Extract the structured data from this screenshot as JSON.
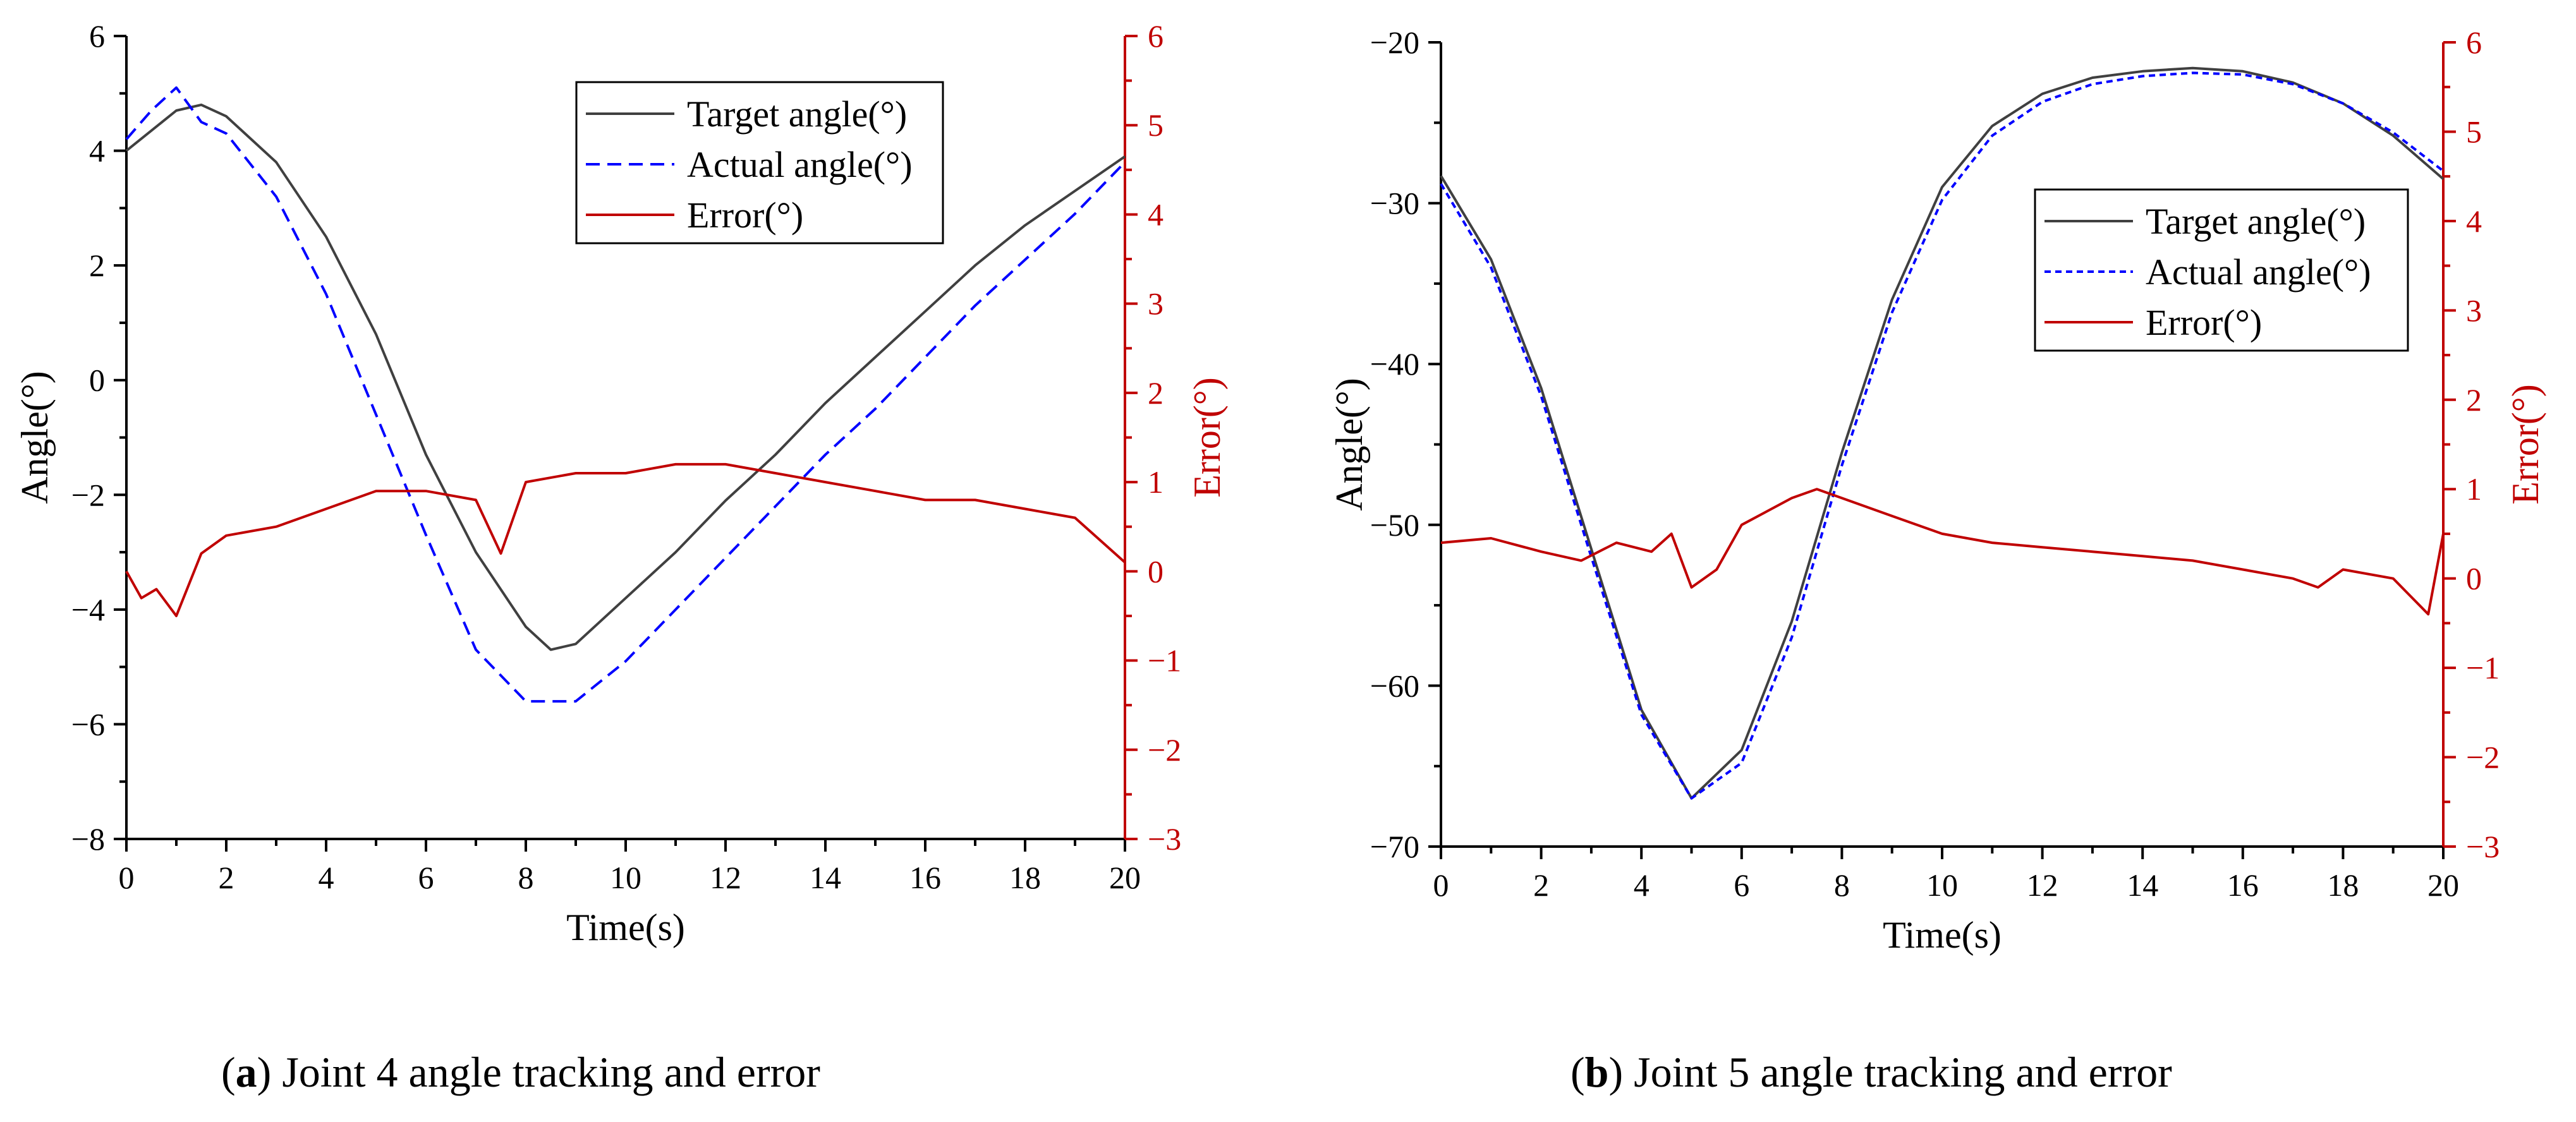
{
  "chart_data": [
    {
      "type": "line",
      "panel": "a",
      "caption_letter": "a",
      "caption_text": " Joint 4 angle tracking and error",
      "xlabel": "Time(s)",
      "ylabel": "Angle(°)",
      "y2label": "Error(°)",
      "xlim": [
        0,
        20
      ],
      "ylim": [
        -8,
        6
      ],
      "y2lim": [
        -3,
        6
      ],
      "xticks": [
        "0",
        "2",
        "4",
        "6",
        "8",
        "10",
        "12",
        "14",
        "16",
        "18",
        "20"
      ],
      "yticks": [
        "−8",
        "−6",
        "−4",
        "−2",
        "0",
        "2",
        "4",
        "6"
      ],
      "y2ticks": [
        "−3",
        "−2",
        "−1",
        "0",
        "1",
        "2",
        "3",
        "4",
        "5",
        "6"
      ],
      "legend_position": "top-right",
      "series": [
        {
          "name": "Target angle(°)",
          "axis": "left",
          "color": "#404040",
          "style": "solid",
          "x": [
            0,
            1,
            1.5,
            2,
            3,
            4,
            5,
            6,
            7,
            8,
            8.5,
            9,
            10,
            11,
            12,
            13,
            14,
            15,
            16,
            17,
            18,
            19,
            20
          ],
          "values": [
            4.0,
            4.7,
            4.8,
            4.6,
            3.8,
            2.5,
            0.8,
            -1.3,
            -3.0,
            -4.3,
            -4.7,
            -4.6,
            -3.8,
            -3.0,
            -2.1,
            -1.3,
            -0.4,
            0.4,
            1.2,
            2.0,
            2.7,
            3.3,
            3.9
          ]
        },
        {
          "name": "Actual angle(°)",
          "axis": "left",
          "color": "#0000ff",
          "style": "dashed",
          "x": [
            0,
            0.5,
            1,
            1.5,
            2,
            3,
            4,
            5,
            6,
            7,
            8,
            9,
            10,
            11,
            12,
            13,
            14,
            15,
            16,
            17,
            18,
            19,
            20
          ],
          "values": [
            4.2,
            4.7,
            5.1,
            4.5,
            4.3,
            3.2,
            1.5,
            -0.6,
            -2.7,
            -4.7,
            -5.6,
            -5.6,
            -4.9,
            -4.0,
            -3.1,
            -2.2,
            -1.3,
            -0.5,
            0.4,
            1.3,
            2.1,
            2.9,
            3.8
          ]
        },
        {
          "name": "Error(°)",
          "axis": "right",
          "color": "#c00000",
          "style": "solid",
          "x": [
            0,
            0.3,
            0.6,
            1,
            1.5,
            2,
            3,
            4,
            5,
            6,
            7,
            7.5,
            8,
            9,
            10,
            11,
            12,
            13,
            14,
            15,
            16,
            17,
            18,
            19,
            20
          ],
          "values": [
            0.0,
            -0.3,
            -0.2,
            -0.5,
            0.2,
            0.4,
            0.5,
            0.7,
            0.9,
            0.9,
            0.8,
            0.2,
            1.0,
            1.1,
            1.1,
            1.2,
            1.2,
            1.1,
            1.0,
            0.9,
            0.8,
            0.8,
            0.7,
            0.6,
            0.1
          ]
        }
      ]
    },
    {
      "type": "line",
      "panel": "b",
      "caption_letter": "b",
      "caption_text": " Joint 5 angle tracking and error",
      "xlabel": "Time(s)",
      "ylabel": "Angle(°)",
      "y2label": "Error(°)",
      "xlim": [
        0,
        20
      ],
      "ylim": [
        -70,
        -20
      ],
      "y2lim": [
        -3,
        6
      ],
      "xticks": [
        "0",
        "2",
        "4",
        "6",
        "8",
        "10",
        "12",
        "14",
        "16",
        "18",
        "20"
      ],
      "yticks": [
        "−70",
        "−60",
        "−50",
        "−40",
        "−30",
        "−20"
      ],
      "y2ticks": [
        "−3",
        "−2",
        "−1",
        "0",
        "1",
        "2",
        "3",
        "4",
        "5",
        "6"
      ],
      "legend_position": "top-right",
      "series": [
        {
          "name": "Target angle(°)",
          "axis": "left",
          "color": "#404040",
          "style": "solid",
          "x": [
            0,
            1,
            2,
            3,
            4,
            5,
            6,
            7,
            8,
            9,
            10,
            11,
            12,
            13,
            14,
            15,
            16,
            17,
            18,
            19,
            20
          ],
          "values": [
            -28.3,
            -33.5,
            -41.5,
            -51.5,
            -61.5,
            -67.0,
            -64.0,
            -56.0,
            -45.5,
            -36.0,
            -29.0,
            -25.2,
            -23.2,
            -22.2,
            -21.8,
            -21.6,
            -21.8,
            -22.5,
            -23.8,
            -25.8,
            -28.5
          ]
        },
        {
          "name": "Actual angle(°)",
          "axis": "left",
          "color": "#0000ff",
          "style": "dotted",
          "x": [
            0,
            1,
            2,
            3,
            4,
            5,
            6,
            7,
            8,
            9,
            10,
            11,
            12,
            13,
            14,
            15,
            16,
            17,
            18,
            19,
            20
          ],
          "values": [
            -28.8,
            -34.0,
            -42.0,
            -52.0,
            -61.8,
            -67.0,
            -64.8,
            -57.0,
            -46.3,
            -36.8,
            -29.8,
            -25.8,
            -23.7,
            -22.6,
            -22.1,
            -21.9,
            -22.0,
            -22.6,
            -23.8,
            -25.6,
            -28.0
          ]
        },
        {
          "name": "Error(°)",
          "axis": "right",
          "color": "#c00000",
          "style": "solid",
          "x": [
            0,
            1,
            2,
            2.8,
            3.5,
            4.2,
            4.6,
            5,
            5.5,
            6,
            7,
            7.5,
            8,
            9,
            10,
            11,
            12,
            13,
            14,
            15,
            16,
            17,
            17.5,
            18,
            19,
            19.7,
            20
          ],
          "values": [
            0.4,
            0.45,
            0.3,
            0.2,
            0.4,
            0.3,
            0.5,
            -0.1,
            0.1,
            0.6,
            0.9,
            1.0,
            0.9,
            0.7,
            0.5,
            0.4,
            0.35,
            0.3,
            0.25,
            0.2,
            0.1,
            0.0,
            -0.1,
            0.1,
            0.0,
            -0.4,
            0.5
          ]
        }
      ]
    }
  ]
}
